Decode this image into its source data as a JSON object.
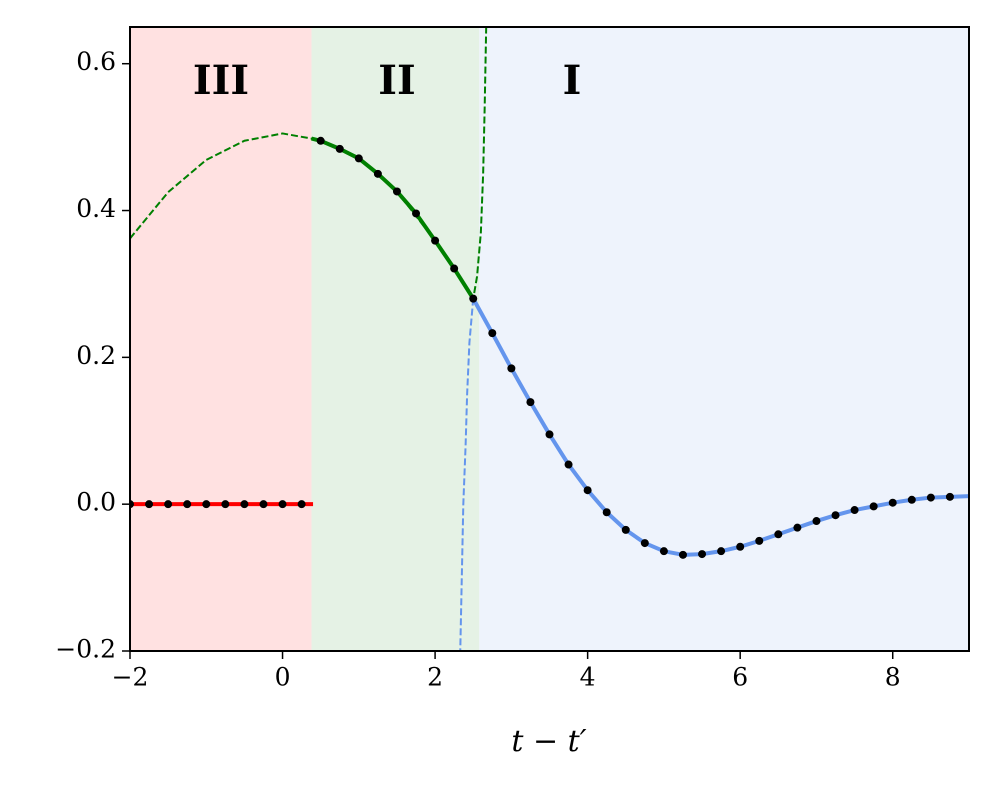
{
  "chart_data": {
    "type": "line",
    "xlabel": "t − t′",
    "xlim": [
      -2,
      9
    ],
    "ylim": [
      -0.2,
      0.65
    ],
    "xticks": [
      {
        "value": -2,
        "label": "−2"
      },
      0,
      2,
      4,
      6,
      8
    ],
    "yticks": [
      {
        "value": -0.2,
        "label": "−0.2"
      },
      {
        "value": 0,
        "label": "0.0"
      },
      0.2,
      0.4,
      0.6
    ],
    "regions": [
      {
        "label": "III",
        "x": [
          -2,
          0.38
        ],
        "color": "#ffe1e1"
      },
      {
        "label": "II",
        "x": [
          0.38,
          2.58
        ],
        "color": "#e5f2e5"
      },
      {
        "label": "I",
        "x": [
          2.58,
          9
        ],
        "color": "#eef3fc"
      }
    ],
    "series": [
      {
        "style": "dashed",
        "color": "#008000",
        "x": [
          -2,
          -1.5,
          -1,
          -0.5,
          0,
          0.38,
          0.5,
          1,
          1.5,
          2,
          2.5,
          2.55,
          2.6,
          2.63,
          2.65,
          2.67
        ],
        "values": [
          0.362,
          0.425,
          0.469,
          0.495,
          0.505,
          0.498,
          0.495,
          0.471,
          0.426,
          0.359,
          0.28,
          0.31,
          0.37,
          0.45,
          0.54,
          0.65
        ]
      },
      {
        "style": "dashed",
        "color": "#6495ed",
        "x": [
          2.5,
          2.45,
          2.42,
          2.4,
          2.37,
          2.35,
          2.33
        ],
        "values": [
          0.28,
          0.22,
          0.15,
          0.08,
          0,
          -0.1,
          -0.2
        ]
      },
      {
        "style": "solid",
        "color": "#ff0000",
        "x": [
          -2,
          0.4
        ],
        "values": [
          0,
          0
        ]
      },
      {
        "style": "solid",
        "color": "#008000",
        "x": [
          0.38,
          0.5,
          0.75,
          1,
          1.25,
          1.5,
          1.75,
          2,
          2.25,
          2.5
        ],
        "values": [
          0.498,
          0.495,
          0.484,
          0.471,
          0.45,
          0.426,
          0.396,
          0.359,
          0.321,
          0.28
        ]
      },
      {
        "style": "solid",
        "color": "#6495ed",
        "x": [
          2.5,
          2.75,
          3,
          3.25,
          3.5,
          3.75,
          4,
          4.25,
          4.5,
          4.75,
          5,
          5.25,
          5.5,
          5.75,
          6,
          6.25,
          6.5,
          6.75,
          7,
          7.25,
          7.5,
          7.75,
          8,
          8.25,
          8.5,
          8.75,
          9
        ],
        "values": [
          0.28,
          0.233,
          0.185,
          0.139,
          0.095,
          0.054,
          0.019,
          -0.011,
          -0.035,
          -0.053,
          -0.064,
          -0.069,
          -0.068,
          -0.064,
          -0.058,
          -0.05,
          -0.041,
          -0.032,
          -0.023,
          -0.015,
          -0.008,
          -0.003,
          0.002,
          0.006,
          0.009,
          0.01,
          0.011
        ]
      },
      {
        "style": "dots",
        "color": "#000000",
        "x": [
          -2,
          -1.75,
          -1.5,
          -1.25,
          -1,
          -0.75,
          -0.5,
          -0.25,
          0,
          0.25,
          0.5,
          0.75,
          1,
          1.25,
          1.5,
          1.75,
          2,
          2.25,
          2.5,
          2.75,
          3,
          3.25,
          3.5,
          3.75,
          4,
          4.25,
          4.5,
          4.75,
          5,
          5.25,
          5.5,
          5.75,
          6,
          6.25,
          6.5,
          6.75,
          7,
          7.25,
          7.5,
          7.75,
          8,
          8.25,
          8.5,
          8.75
        ],
        "values": [
          0,
          0,
          0,
          0,
          0,
          0,
          0,
          0,
          0,
          0,
          0.495,
          0.484,
          0.471,
          0.45,
          0.426,
          0.396,
          0.359,
          0.321,
          0.28,
          0.233,
          0.185,
          0.139,
          0.095,
          0.054,
          0.019,
          -0.011,
          -0.035,
          -0.053,
          -0.064,
          -0.069,
          -0.068,
          -0.064,
          -0.058,
          -0.05,
          -0.041,
          -0.032,
          -0.023,
          -0.015,
          -0.008,
          -0.003,
          0.002,
          0.006,
          0.009,
          0.01
        ]
      }
    ]
  }
}
